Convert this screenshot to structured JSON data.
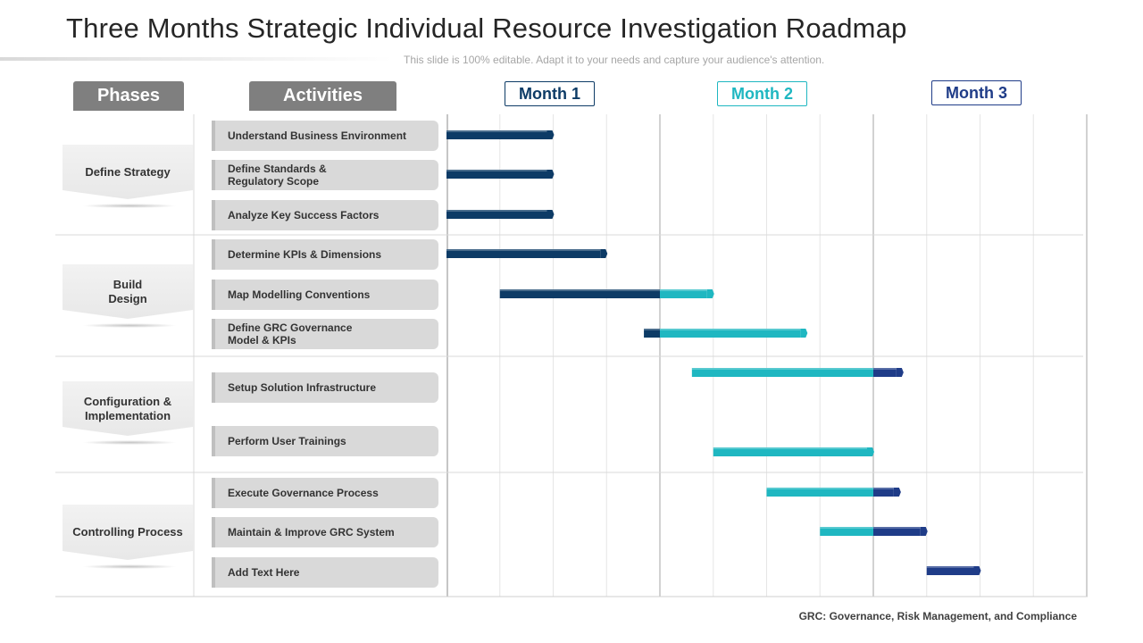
{
  "title": "Three Months Strategic Individual Resource Investigation Roadmap",
  "subtitle": "This slide is 100% editable. Adapt it to your needs and capture your audience's attention.",
  "headers": {
    "phases": "Phases",
    "activities": "Activities"
  },
  "months": [
    {
      "label": "Month 1",
      "color": "#0d3b66"
    },
    {
      "label": "Month 2",
      "color": "#1fb7c1"
    },
    {
      "label": "Month 3",
      "color": "#1f3c88"
    }
  ],
  "phases": [
    {
      "label": "Define Strategy"
    },
    {
      "label": "Build\nDesign"
    },
    {
      "label": "Configuration &\nImplementation"
    },
    {
      "label": "Controlling Process"
    }
  ],
  "activities": [
    {
      "label": "Understand Business Environment"
    },
    {
      "label": "Define Standards &\nRegulatory  Scope"
    },
    {
      "label": "Analyze Key Success Factors"
    },
    {
      "label": "Determine KPIs & Dimensions"
    },
    {
      "label": "Map Modelling  Conventions"
    },
    {
      "label": "Define GRC  Governance\nModel & KPIs"
    },
    {
      "label": "Setup Solution Infrastructure"
    },
    {
      "label": "Perform User Trainings"
    },
    {
      "label": "Execute Governance Process"
    },
    {
      "label": "Maintain & Improve GRC  System"
    },
    {
      "label": "Add Text Here"
    }
  ],
  "chart_data": {
    "type": "gantt",
    "unit": "weeks",
    "range": [
      0,
      12
    ],
    "tasks": [
      {
        "activity": "Understand Business Environment",
        "start": 0,
        "end": 2
      },
      {
        "activity": "Define Standards & Regulatory Scope",
        "start": 0,
        "end": 2
      },
      {
        "activity": "Analyze Key Success Factors",
        "start": 0,
        "end": 2
      },
      {
        "activity": "Determine KPIs & Dimensions",
        "start": 0,
        "end": 3
      },
      {
        "activity": "Map Modelling Conventions",
        "start": 1,
        "end": 5
      },
      {
        "activity": "Define GRC Governance Model & KPIs",
        "start": 3.7,
        "end": 6.75
      },
      {
        "activity": "Setup Solution Infrastructure",
        "start": 4.6,
        "end": 8.55
      },
      {
        "activity": "Perform User Trainings",
        "start": 5,
        "end": 8
      },
      {
        "activity": "Execute Governance Process",
        "start": 6,
        "end": 8.5
      },
      {
        "activity": "Maintain & Improve GRC System",
        "start": 7,
        "end": 9
      },
      {
        "activity": "Add Text Here",
        "start": 9,
        "end": 10
      }
    ]
  },
  "footer": "GRC:  Governance, Risk Management, and Compliance"
}
